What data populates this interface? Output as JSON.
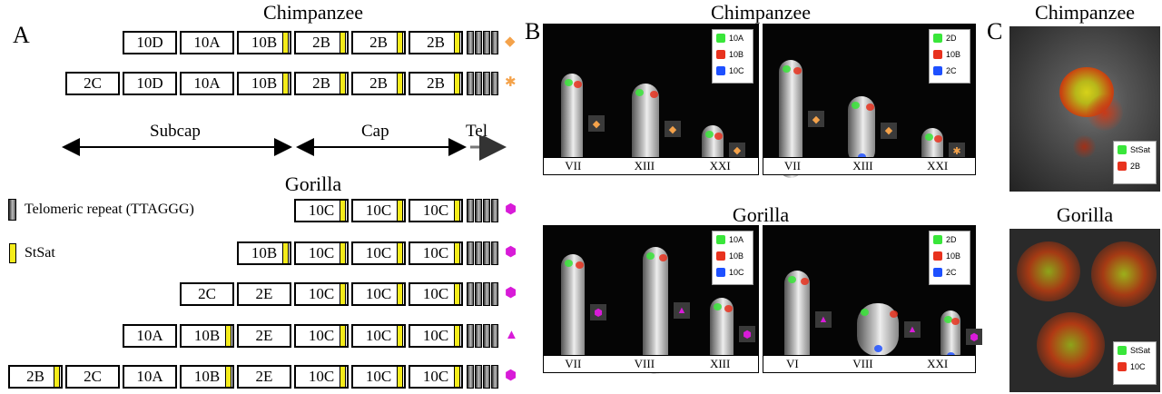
{
  "panel_a": {
    "label": "A",
    "chimp_title": "Chimpanzee",
    "gorilla_title": "Gorilla",
    "chimp_rows": [
      [
        "10D",
        "10A",
        "10B",
        "2B",
        "2B",
        "2B"
      ],
      [
        "2C",
        "10D",
        "10A",
        "10B",
        "2B",
        "2B",
        "2B"
      ]
    ],
    "gorilla_rows": [
      [
        "10C",
        "10C",
        "10C"
      ],
      [
        "10B",
        "10C",
        "10C",
        "10C"
      ],
      [
        "2C",
        "2E",
        "10C",
        "10C",
        "10C"
      ],
      [
        "10A",
        "10B",
        "2E",
        "10C",
        "10C",
        "10C"
      ],
      [
        "2B",
        "2C",
        "10A",
        "10B",
        "2E",
        "10C",
        "10C",
        "10C"
      ]
    ],
    "region_labels": {
      "subcap": "Subcap",
      "cap": "Cap",
      "tel": "Tel"
    },
    "legend": {
      "telomeric": "Telomeric repeat (TTAGGG)",
      "stsat": "StSat"
    },
    "colors": {
      "stsat": "#f5ec1a",
      "chimp_marker": "#f4a24a",
      "gorilla_marker": "#d81bd8"
    }
  },
  "panel_b": {
    "label": "B",
    "chimp_title": "Chimpanzee",
    "gorilla_title": "Gorilla",
    "chimp_left": {
      "legend": [
        "10A",
        "10B",
        "10C"
      ],
      "chromosomes": [
        "VII",
        "XIII",
        "XXI"
      ]
    },
    "chimp_right": {
      "legend": [
        "2D",
        "10B",
        "2C"
      ],
      "chromosomes": [
        "VII",
        "XIII",
        "XXI"
      ]
    },
    "gorilla_left": {
      "legend": [
        "10A",
        "10B",
        "10C"
      ],
      "chromosomes": [
        "VII",
        "VIII",
        "XIII"
      ]
    },
    "gorilla_right": {
      "legend": [
        "2D",
        "10B",
        "2C"
      ],
      "chromosomes": [
        "VI",
        "VIII",
        "XXI"
      ]
    },
    "probe_colors": [
      "#39e63a",
      "#e8321e",
      "#1e50ff"
    ]
  },
  "panel_c": {
    "label": "C",
    "chimp_title": "Chimpanzee",
    "gorilla_title": "Gorilla",
    "chimp_legend": [
      "StSat",
      "2B"
    ],
    "gorilla_legend": [
      "StSat",
      "10C"
    ]
  }
}
